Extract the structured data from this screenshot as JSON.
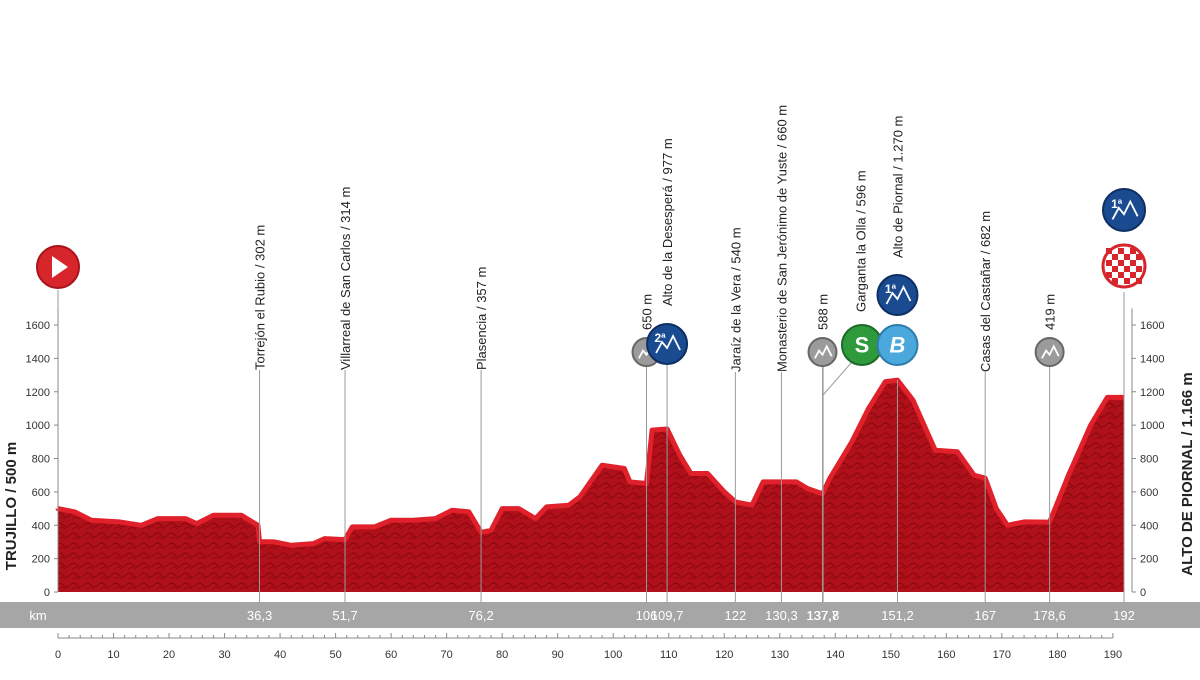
{
  "colors": {
    "profile_fill": "#b0101a",
    "profile_light": "#e0202a",
    "profile_texture": "#5a0000",
    "km_band": "#a6a6a6",
    "axis_text": "#333333",
    "kom_cat1_2": "#1a4a8f",
    "kom_cat3": "#9b9b9b",
    "sprint": "#2e9a3c",
    "bonus": "#4aa8dc",
    "start": "#d7262b"
  },
  "chart_data": {
    "type": "area",
    "title": "",
    "xlabel": "km",
    "ylabel": "",
    "xlim": [
      0,
      192
    ],
    "ylim": [
      0,
      1600
    ],
    "x_ticks": [
      0,
      10,
      20,
      30,
      40,
      50,
      60,
      70,
      80,
      90,
      100,
      110,
      120,
      130,
      140,
      150,
      160,
      170,
      180,
      190
    ],
    "y_ticks": [
      0,
      200,
      400,
      600,
      800,
      1000,
      1200,
      1400,
      1600
    ],
    "start_label": "TRUJILLO / 500 m",
    "finish_label": "ALTO DE PIORNAL / 1.166 m",
    "profile": [
      [
        0,
        500
      ],
      [
        3,
        480
      ],
      [
        6,
        430
      ],
      [
        11,
        420
      ],
      [
        15,
        400
      ],
      [
        18,
        440
      ],
      [
        23,
        440
      ],
      [
        25,
        410
      ],
      [
        28,
        460
      ],
      [
        33,
        460
      ],
      [
        36,
        400
      ],
      [
        36.3,
        302
      ],
      [
        39,
        300
      ],
      [
        42,
        280
      ],
      [
        46,
        290
      ],
      [
        48,
        320
      ],
      [
        51.7,
        314
      ],
      [
        53,
        390
      ],
      [
        57,
        390
      ],
      [
        60,
        430
      ],
      [
        64,
        430
      ],
      [
        68,
        440
      ],
      [
        71,
        490
      ],
      [
        74,
        480
      ],
      [
        76.2,
        357
      ],
      [
        78,
        370
      ],
      [
        80,
        500
      ],
      [
        83,
        500
      ],
      [
        86,
        440
      ],
      [
        88,
        510
      ],
      [
        92,
        520
      ],
      [
        94,
        570
      ],
      [
        98,
        760
      ],
      [
        102,
        740
      ],
      [
        103,
        660
      ],
      [
        106,
        650
      ],
      [
        107,
        970
      ],
      [
        109.7,
        977
      ],
      [
        112,
        820
      ],
      [
        114,
        710
      ],
      [
        117,
        710
      ],
      [
        120,
        600
      ],
      [
        122,
        540
      ],
      [
        125,
        520
      ],
      [
        127,
        660
      ],
      [
        130.3,
        660
      ],
      [
        133,
        660
      ],
      [
        135,
        620
      ],
      [
        137.7,
        588
      ],
      [
        139,
        680
      ],
      [
        143,
        900
      ],
      [
        146,
        1100
      ],
      [
        149,
        1260
      ],
      [
        151.2,
        1270
      ],
      [
        154,
        1150
      ],
      [
        158,
        850
      ],
      [
        162,
        840
      ],
      [
        165,
        700
      ],
      [
        167,
        682
      ],
      [
        169,
        500
      ],
      [
        171,
        400
      ],
      [
        174,
        420
      ],
      [
        178.6,
        419
      ],
      [
        182,
        700
      ],
      [
        186,
        1000
      ],
      [
        189,
        1166
      ],
      [
        192,
        1166
      ]
    ],
    "points": [
      {
        "km": "36,3",
        "x": 36.3,
        "alt": 302,
        "name": "Torrejón el Rubio / 302 m"
      },
      {
        "km": "51,7",
        "x": 51.7,
        "alt": 314,
        "name": "Villarreal de San Carlos / 314 m"
      },
      {
        "km": "76,2",
        "x": 76.2,
        "alt": 357,
        "name": "Plasencia / 357 m"
      },
      {
        "km": "106",
        "x": 106,
        "alt": 650,
        "name": "650 m",
        "badge": "cat3"
      },
      {
        "km": "109,7",
        "x": 109.7,
        "alt": 977,
        "name": "Alto de la Desesperá / 977 m",
        "badge": "cat2",
        "badge_text": "2ª"
      },
      {
        "km": "122",
        "x": 122,
        "alt": 540,
        "name": "Jaraíz de la Vera / 540 m"
      },
      {
        "km": "130,3",
        "x": 130.3,
        "alt": 660,
        "name": "Monasterio de San Jerónimo de Yuste / 660 m"
      },
      {
        "km": "137,7",
        "x": 137.7,
        "alt": 588,
        "name": "588 m",
        "badge": "cat3"
      },
      {
        "km": "137,8",
        "x": 137.8,
        "alt": 596,
        "name": "Garganta la Olla / 596 m",
        "badge": "sprint",
        "badge_text": "S"
      },
      {
        "km": "151,2",
        "x": 151.2,
        "alt": 1270,
        "name": "Alto de Piornal / 1.270 m",
        "badge": "cat1",
        "badge_text": "1ª",
        "badge2": "bonus",
        "badge2_text": "B"
      },
      {
        "km": "167",
        "x": 167,
        "alt": 682,
        "name": "Casas del Castañar / 682 m"
      },
      {
        "km": "178,6",
        "x": 178.6,
        "alt": 419,
        "name": "419 m",
        "badge": "cat3"
      },
      {
        "km": "192",
        "x": 192,
        "alt": 1166,
        "name": "",
        "badge": "cat1",
        "badge_text": "1ª",
        "badge2": "finish"
      }
    ]
  }
}
